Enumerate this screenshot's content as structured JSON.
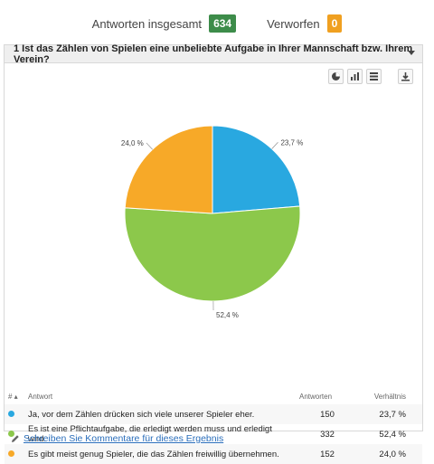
{
  "summary": {
    "total_label": "Antworten insgesamt",
    "total_value": "634",
    "rejected_label": "Verworfen",
    "rejected_value": "0"
  },
  "question": {
    "title": "1 Ist das Zählen von Spielen eine unbeliebte Aufgabe in Ihrer Mannschaft bzw. Ihrem Verein?"
  },
  "toolbar": {
    "icons": [
      "pie-chart-icon",
      "bar-chart-icon",
      "table-icon",
      "download-icon"
    ]
  },
  "chart_data": {
    "type": "pie",
    "slices": [
      {
        "label": "Ja, vor dem Zählen drücken sich viele unserer Spieler eher.",
        "value": 23.7,
        "display": "23,7 %",
        "color": "#29a8e0"
      },
      {
        "label": "Es ist eine Pflichtaufgabe, die erledigt werden muss und erledigt wird.",
        "value": 52.4,
        "display": "52,4 %",
        "color": "#8cc84b"
      },
      {
        "label": "Es gibt meist genug Spieler, die das Zählen freiwillig übernehmen.",
        "value": 24.0,
        "display": "24,0 %",
        "color": "#f7a928"
      }
    ]
  },
  "table": {
    "headers": {
      "index": "#",
      "answer": "Antwort",
      "count": "Antworten",
      "ratio": "Verhältnis"
    },
    "rows": [
      {
        "answer": "Ja, vor dem Zählen drücken sich viele unserer Spieler eher.",
        "count": "150",
        "ratio": "23,7 %",
        "color": "#29a8e0"
      },
      {
        "answer": "Es ist eine Pflichtaufgabe, die erledigt werden muss und erledigt wird.",
        "count": "332",
        "ratio": "52,4 %",
        "color": "#8cc84b"
      },
      {
        "answer": "Es gibt meist genug Spieler, die das Zählen freiwillig übernehmen.",
        "count": "152",
        "ratio": "24,0 %",
        "color": "#f7a928"
      }
    ]
  },
  "comment_link": "Schreiben Sie Kommentare für dieses Ergebnis"
}
